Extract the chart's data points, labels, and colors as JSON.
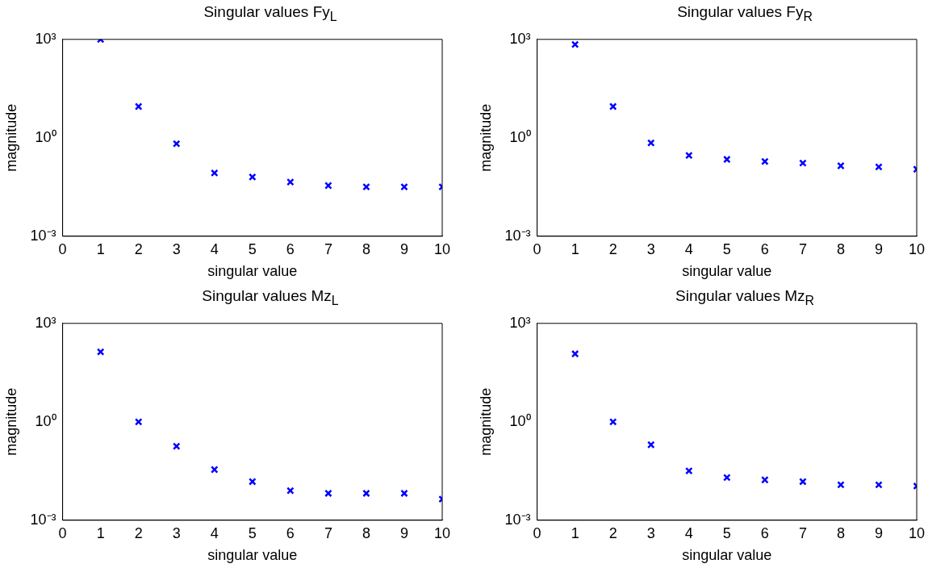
{
  "chart_data": [
    {
      "type": "scatter",
      "title": "Singular values Fy$_{L}$",
      "xlabel": "singular value",
      "ylabel": "magnitude",
      "x": [
        1,
        2,
        3,
        4,
        5,
        6,
        7,
        8,
        9,
        10
      ],
      "series": [
        {
          "color": "#0000ff",
          "values": [
            1000,
            9,
            0.66,
            0.085,
            0.064,
            0.045,
            0.035,
            0.032,
            0.032,
            0.032
          ]
        }
      ],
      "xlim": [
        0,
        10
      ],
      "xticks": [
        0,
        1,
        2,
        3,
        4,
        5,
        6,
        7,
        8,
        9,
        10
      ],
      "ylim": [
        0.001,
        1000
      ],
      "yticks": [
        {
          "value": 0.001,
          "label": "10⁻³"
        },
        {
          "value": 1,
          "label": "10⁰"
        },
        {
          "value": 1000,
          "label": "10³"
        }
      ],
      "log": "y",
      "grid": false,
      "legend": false,
      "marker": "cross"
    },
    {
      "type": "scatter",
      "title": "Singular values Fy$_{R}$",
      "xlabel": "singular value",
      "ylabel": "magnitude",
      "x": [
        1,
        2,
        3,
        4,
        5,
        6,
        7,
        8,
        9,
        10
      ],
      "series": [
        {
          "color": "#0000ff",
          "values": [
            700,
            9,
            0.7,
            0.29,
            0.22,
            0.19,
            0.17,
            0.14,
            0.13,
            0.11
          ]
        }
      ],
      "xlim": [
        0,
        10
      ],
      "xticks": [
        0,
        1,
        2,
        3,
        4,
        5,
        6,
        7,
        8,
        9,
        10
      ],
      "ylim": [
        0.001,
        1000
      ],
      "yticks": [
        {
          "value": 0.001,
          "label": "10⁻³"
        },
        {
          "value": 1,
          "label": "10⁰"
        },
        {
          "value": 1000,
          "label": "10³"
        }
      ],
      "log": "y",
      "grid": false,
      "legend": false,
      "marker": "cross"
    },
    {
      "type": "scatter",
      "title": "Singular values Mz$_{L}$",
      "xlabel": "singular value",
      "ylabel": "magnitude",
      "x": [
        1,
        2,
        3,
        4,
        5,
        6,
        7,
        8,
        9,
        10
      ],
      "series": [
        {
          "color": "#0000ff",
          "values": [
            135,
            1,
            0.18,
            0.035,
            0.015,
            0.008,
            0.0066,
            0.0066,
            0.0066,
            0.0044
          ]
        }
      ],
      "xlim": [
        0,
        10
      ],
      "xticks": [
        0,
        1,
        2,
        3,
        4,
        5,
        6,
        7,
        8,
        9,
        10
      ],
      "ylim": [
        0.001,
        1000
      ],
      "yticks": [
        {
          "value": 0.001,
          "label": "10⁻³"
        },
        {
          "value": 1,
          "label": "10⁰"
        },
        {
          "value": 1000,
          "label": "10³"
        }
      ],
      "log": "y",
      "grid": false,
      "legend": false,
      "marker": "cross"
    },
    {
      "type": "scatter",
      "title": "Singular values Mz$_{R}$",
      "xlabel": "singular value",
      "ylabel": "magnitude",
      "x": [
        1,
        2,
        3,
        4,
        5,
        6,
        7,
        8,
        9,
        10
      ],
      "series": [
        {
          "color": "#0000ff",
          "values": [
            118,
            1,
            0.2,
            0.032,
            0.02,
            0.017,
            0.015,
            0.012,
            0.012,
            0.011
          ]
        }
      ],
      "xlim": [
        0,
        10
      ],
      "xticks": [
        0,
        1,
        2,
        3,
        4,
        5,
        6,
        7,
        8,
        9,
        10
      ],
      "ylim": [
        0.001,
        1000
      ],
      "yticks": [
        {
          "value": 0.001,
          "label": "10⁻³"
        },
        {
          "value": 1,
          "label": "10⁰"
        },
        {
          "value": 1000,
          "label": "10³"
        }
      ],
      "log": "y",
      "grid": false,
      "legend": false,
      "marker": "cross"
    }
  ]
}
